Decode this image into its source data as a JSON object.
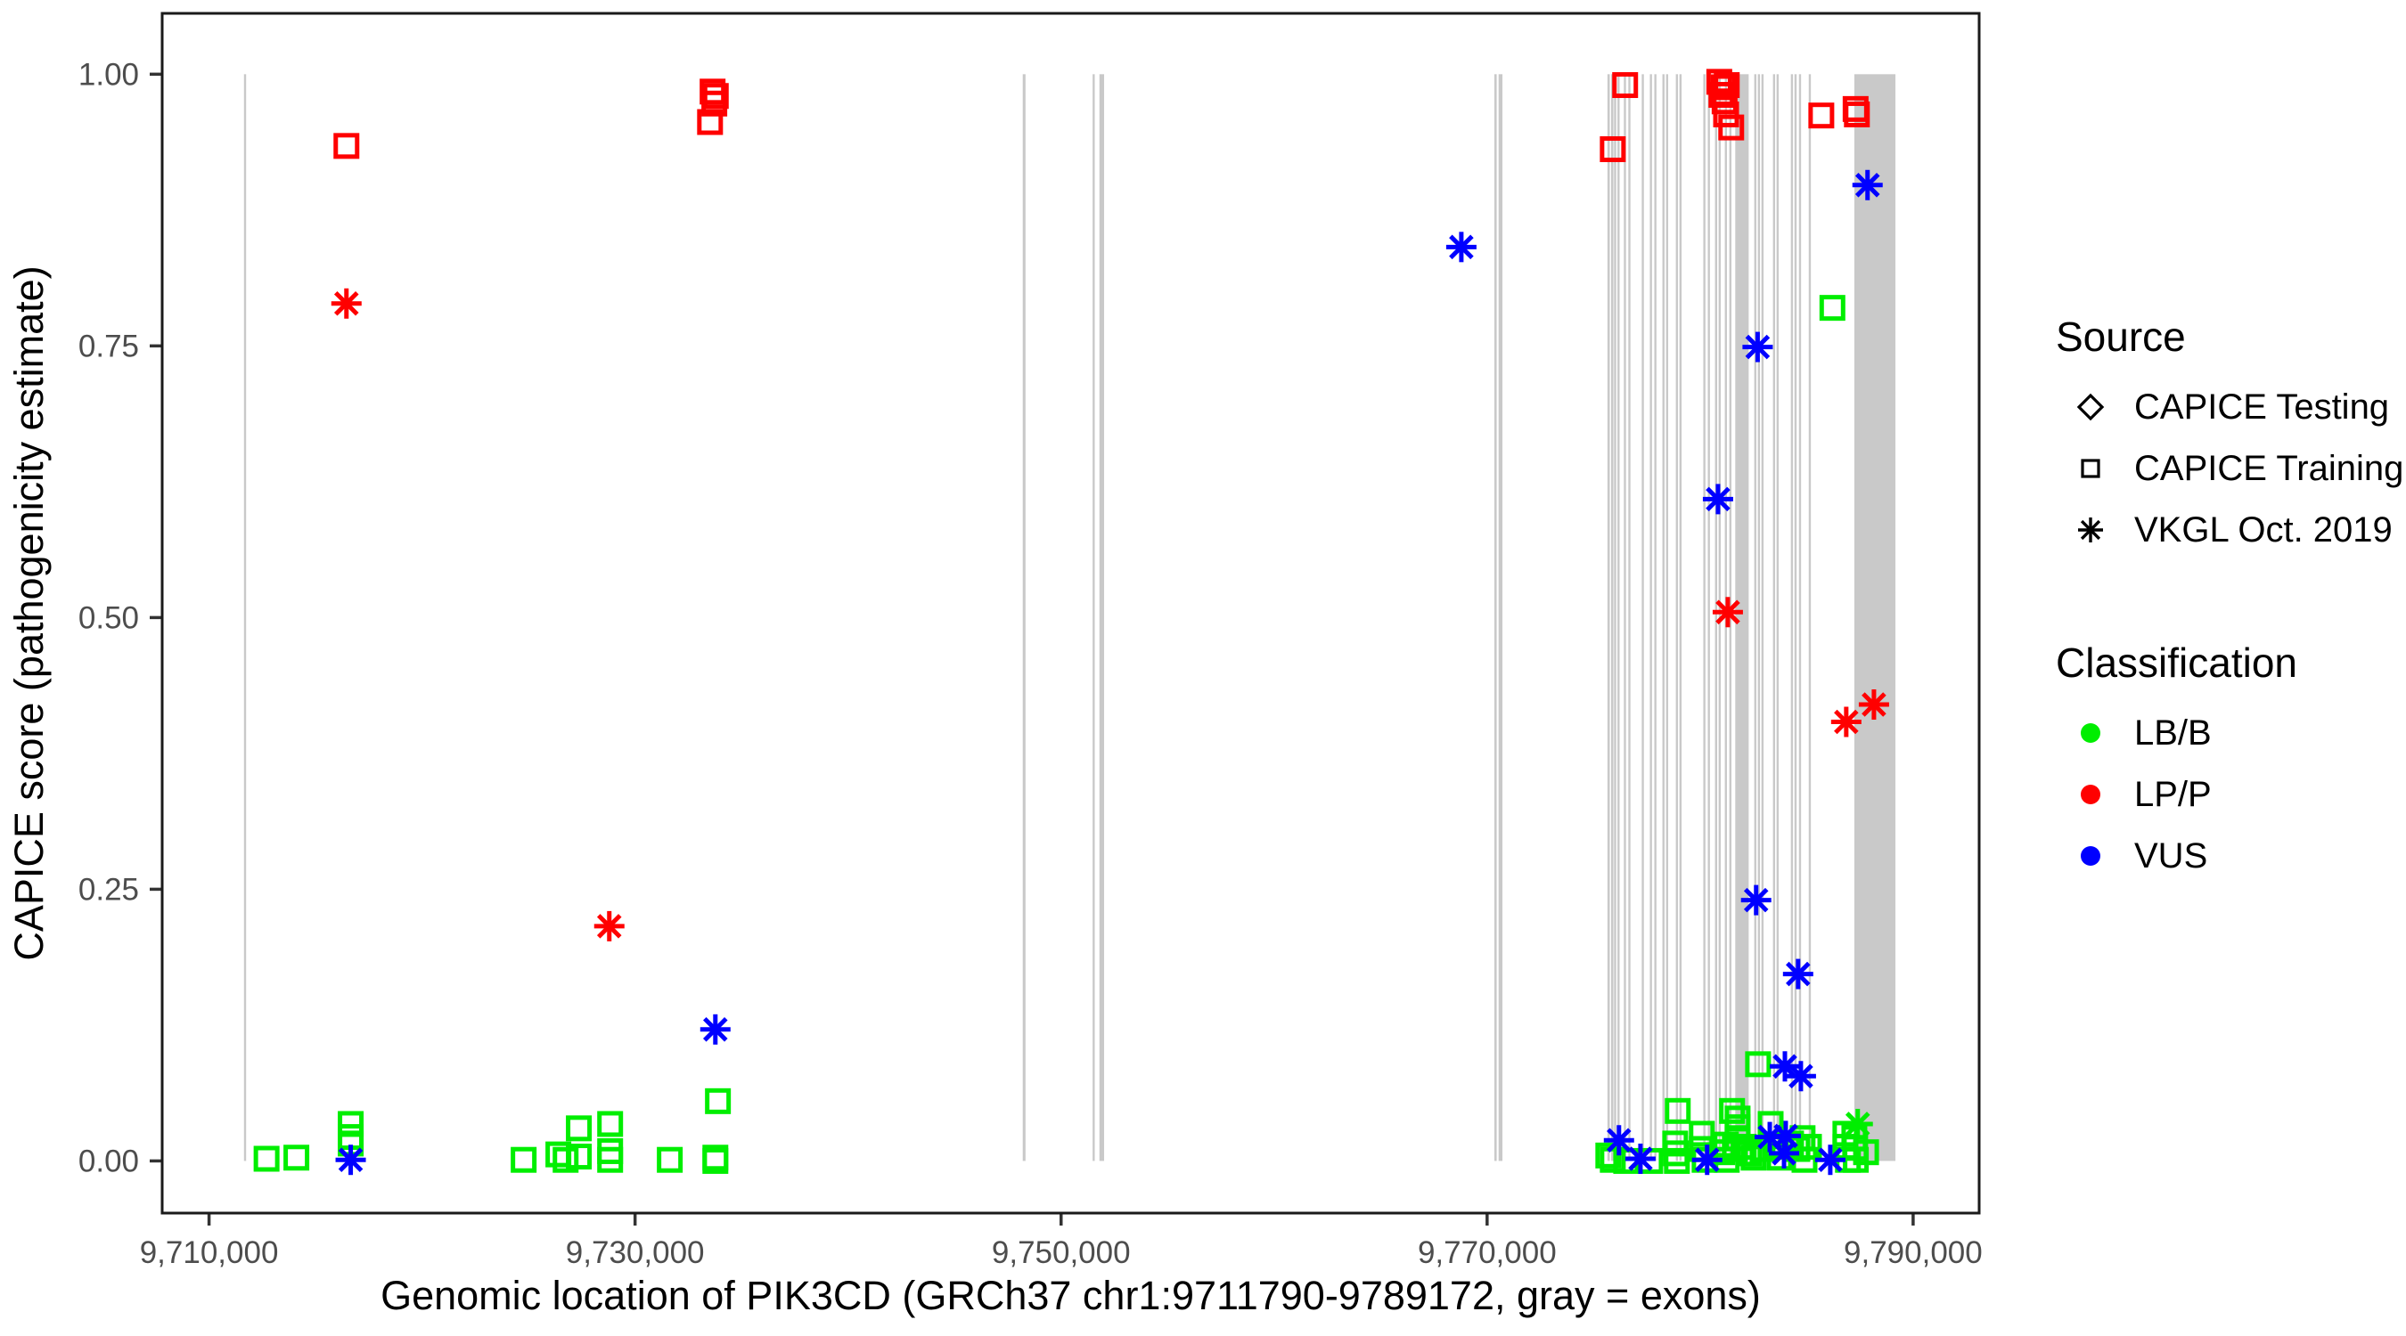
{
  "legend": {
    "source": {
      "title": "Source",
      "items": [
        {
          "label": "CAPICE Testing",
          "symbol": "diamond"
        },
        {
          "label": "CAPICE Training",
          "symbol": "square"
        },
        {
          "label": "VKGL Oct. 2019",
          "symbol": "asterisk"
        }
      ]
    },
    "classification": {
      "title": "Classification",
      "items": [
        {
          "label": "LB/B",
          "color": "#00EE00"
        },
        {
          "label": "LP/P",
          "color": "#FF0000"
        },
        {
          "label": "VUS",
          "color": "#0000FF"
        }
      ]
    }
  },
  "chart_data": {
    "type": "scatter",
    "title": "",
    "xlabel": "Genomic location of PIK3CD (GRCh37 chr1:9711790-9789172, gray = exons)",
    "ylabel": "CAPICE score (pathogenicity estimate)",
    "x_domain": [
      9707800,
      9793100
    ],
    "y_domain": [
      -0.048,
      1.056
    ],
    "x_ticks": [
      9710000,
      9730000,
      9750000,
      9770000,
      9790000
    ],
    "x_tick_labels": [
      "9,710,000",
      "9,730,000",
      "9,750,000",
      "9,770,000",
      "9,790,000"
    ],
    "y_ticks": [
      0.0,
      0.25,
      0.5,
      0.75,
      1.0
    ],
    "y_tick_labels": [
      "0.00",
      "0.25",
      "0.50",
      "0.75",
      "1.00"
    ],
    "grid": false,
    "legend_position": "right",
    "exon_color": "#C9C9C9",
    "axis_text_color": "#4D4D4D",
    "class_colors": {
      "LB/B": "#00EE00",
      "LP/P": "#FF0000",
      "VUS": "#0000FF"
    },
    "source_symbols": {
      "CAPICE Testing": "diamond",
      "CAPICE Training": "square",
      "VKGL Oct. 2019": "asterisk"
    },
    "exons": [
      [
        9711640,
        9711720
      ],
      [
        9748200,
        9748330
      ],
      [
        9751480,
        9751570
      ],
      [
        9751800,
        9752020
      ],
      [
        9770340,
        9770450
      ],
      [
        9770540,
        9770720
      ],
      [
        9775650,
        9775760
      ],
      [
        9775820,
        9775930
      ],
      [
        9775960,
        9776060
      ],
      [
        9776120,
        9776220
      ],
      [
        9776420,
        9776520
      ],
      [
        9776630,
        9776730
      ],
      [
        9777260,
        9777360
      ],
      [
        9777640,
        9777740
      ],
      [
        9777850,
        9777950
      ],
      [
        9778230,
        9778330
      ],
      [
        9778400,
        9778500
      ],
      [
        9778860,
        9778960
      ],
      [
        9779030,
        9779130
      ],
      [
        9780150,
        9780250
      ],
      [
        9780360,
        9780460
      ],
      [
        9780700,
        9780800
      ],
      [
        9780870,
        9780970
      ],
      [
        9781160,
        9781260
      ],
      [
        9781370,
        9781470
      ],
      [
        9781650,
        9782280
      ],
      [
        9782540,
        9782640
      ],
      [
        9782710,
        9782800
      ],
      [
        9782880,
        9782970
      ],
      [
        9783420,
        9783510
      ],
      [
        9783590,
        9783680
      ],
      [
        9784260,
        9784350
      ],
      [
        9784430,
        9784520
      ],
      [
        9784640,
        9784730
      ],
      [
        9785100,
        9785190
      ],
      [
        9787240,
        9789170
      ]
    ],
    "points": [
      {
        "pos": 9716450,
        "score": 0.934,
        "classification": "LP/P",
        "source": "CAPICE Training"
      },
      {
        "pos": 9733640,
        "score": 0.984,
        "classification": "LP/P",
        "source": "CAPICE Training"
      },
      {
        "pos": 9733790,
        "score": 0.98,
        "classification": "LP/P",
        "source": "CAPICE Training"
      },
      {
        "pos": 9733720,
        "score": 0.973,
        "classification": "LP/P",
        "source": "CAPICE Training"
      },
      {
        "pos": 9733520,
        "score": 0.956,
        "classification": "LP/P",
        "source": "CAPICE Training"
      },
      {
        "pos": 9775900,
        "score": 0.931,
        "classification": "LP/P",
        "source": "CAPICE Training"
      },
      {
        "pos": 9776480,
        "score": 0.99,
        "classification": "LP/P",
        "source": "CAPICE Training"
      },
      {
        "pos": 9780900,
        "score": 0.993,
        "classification": "LP/P",
        "source": "CAPICE Training"
      },
      {
        "pos": 9781100,
        "score": 0.988,
        "classification": "LP/P",
        "source": "CAPICE Training"
      },
      {
        "pos": 9781000,
        "score": 0.981,
        "classification": "LP/P",
        "source": "CAPICE Training"
      },
      {
        "pos": 9781250,
        "score": 0.99,
        "classification": "LP/P",
        "source": "CAPICE Training"
      },
      {
        "pos": 9781150,
        "score": 0.975,
        "classification": "LP/P",
        "source": "CAPICE Training"
      },
      {
        "pos": 9781220,
        "score": 0.963,
        "classification": "LP/P",
        "source": "CAPICE Training"
      },
      {
        "pos": 9781460,
        "score": 0.951,
        "classification": "LP/P",
        "source": "CAPICE Training"
      },
      {
        "pos": 9785690,
        "score": 0.962,
        "classification": "LP/P",
        "source": "CAPICE Training"
      },
      {
        "pos": 9787300,
        "score": 0.968,
        "classification": "LP/P",
        "source": "CAPICE Training"
      },
      {
        "pos": 9787360,
        "score": 0.963,
        "classification": "LP/P",
        "source": "CAPICE Training"
      },
      {
        "pos": 9716450,
        "score": 0.789,
        "classification": "LP/P",
        "source": "VKGL Oct. 2019"
      },
      {
        "pos": 9728790,
        "score": 0.216,
        "classification": "LP/P",
        "source": "VKGL Oct. 2019"
      },
      {
        "pos": 9781300,
        "score": 0.505,
        "classification": "LP/P",
        "source": "VKGL Oct. 2019"
      },
      {
        "pos": 9786860,
        "score": 0.404,
        "classification": "LP/P",
        "source": "VKGL Oct. 2019"
      },
      {
        "pos": 9788160,
        "score": 0.42,
        "classification": "LP/P",
        "source": "VKGL Oct. 2019"
      },
      {
        "pos": 9716650,
        "score": 0.001,
        "classification": "VUS",
        "source": "VKGL Oct. 2019"
      },
      {
        "pos": 9733770,
        "score": 0.121,
        "classification": "VUS",
        "source": "VKGL Oct. 2019"
      },
      {
        "pos": 9768790,
        "score": 0.841,
        "classification": "VUS",
        "source": "VKGL Oct. 2019"
      },
      {
        "pos": 9787860,
        "score": 0.898,
        "classification": "VUS",
        "source": "VKGL Oct. 2019"
      },
      {
        "pos": 9782700,
        "score": 0.749,
        "classification": "VUS",
        "source": "VKGL Oct. 2019"
      },
      {
        "pos": 9780840,
        "score": 0.609,
        "classification": "VUS",
        "source": "VKGL Oct. 2019"
      },
      {
        "pos": 9782630,
        "score": 0.24,
        "classification": "VUS",
        "source": "VKGL Oct. 2019"
      },
      {
        "pos": 9784600,
        "score": 0.172,
        "classification": "VUS",
        "source": "VKGL Oct. 2019"
      },
      {
        "pos": 9783980,
        "score": 0.087,
        "classification": "VUS",
        "source": "VKGL Oct. 2019"
      },
      {
        "pos": 9784730,
        "score": 0.078,
        "classification": "VUS",
        "source": "VKGL Oct. 2019"
      },
      {
        "pos": 9776190,
        "score": 0.019,
        "classification": "VUS",
        "source": "VKGL Oct. 2019"
      },
      {
        "pos": 9777200,
        "score": 0.002,
        "classification": "VUS",
        "source": "VKGL Oct. 2019"
      },
      {
        "pos": 9780330,
        "score": 0.001,
        "classification": "VUS",
        "source": "VKGL Oct. 2019"
      },
      {
        "pos": 9783270,
        "score": 0.022,
        "classification": "VUS",
        "source": "VKGL Oct. 2019"
      },
      {
        "pos": 9784020,
        "score": 0.023,
        "classification": "VUS",
        "source": "VKGL Oct. 2019"
      },
      {
        "pos": 9783940,
        "score": 0.007,
        "classification": "VUS",
        "source": "VKGL Oct. 2019"
      },
      {
        "pos": 9786110,
        "score": 0.001,
        "classification": "VUS",
        "source": "VKGL Oct. 2019"
      },
      {
        "pos": 9787400,
        "score": 0.034,
        "classification": "LB/B",
        "source": "VKGL Oct. 2019"
      },
      {
        "pos": 9712700,
        "score": 0.002,
        "classification": "LB/B",
        "source": "CAPICE Training"
      },
      {
        "pos": 9714100,
        "score": 0.003,
        "classification": "LB/B",
        "source": "CAPICE Training"
      },
      {
        "pos": 9716650,
        "score": 0.034,
        "classification": "LB/B",
        "source": "CAPICE Training"
      },
      {
        "pos": 9716650,
        "score": 0.022,
        "classification": "LB/B",
        "source": "CAPICE Training"
      },
      {
        "pos": 9716650,
        "score": 0.016,
        "classification": "LB/B",
        "source": "CAPICE Training"
      },
      {
        "pos": 9724770,
        "score": 0.001,
        "classification": "LB/B",
        "source": "CAPICE Training"
      },
      {
        "pos": 9726400,
        "score": 0.006,
        "classification": "LB/B",
        "source": "CAPICE Training"
      },
      {
        "pos": 9726740,
        "score": 0.001,
        "classification": "LB/B",
        "source": "CAPICE Training"
      },
      {
        "pos": 9727360,
        "score": 0.03,
        "classification": "LB/B",
        "source": "CAPICE Training"
      },
      {
        "pos": 9727360,
        "score": 0.004,
        "classification": "LB/B",
        "source": "CAPICE Training"
      },
      {
        "pos": 9728830,
        "score": 0.034,
        "classification": "LB/B",
        "source": "CAPICE Training"
      },
      {
        "pos": 9728830,
        "score": 0.009,
        "classification": "LB/B",
        "source": "CAPICE Training"
      },
      {
        "pos": 9728830,
        "score": 0.001,
        "classification": "LB/B",
        "source": "CAPICE Training"
      },
      {
        "pos": 9731630,
        "score": 0.001,
        "classification": "LB/B",
        "source": "CAPICE Training"
      },
      {
        "pos": 9733770,
        "score": 0.003,
        "classification": "LB/B",
        "source": "CAPICE Training"
      },
      {
        "pos": 9733770,
        "score": 0.0,
        "classification": "LB/B",
        "source": "CAPICE Training"
      },
      {
        "pos": 9733890,
        "score": 0.055,
        "classification": "LB/B",
        "source": "CAPICE Training"
      },
      {
        "pos": 9775690,
        "score": 0.005,
        "classification": "LB/B",
        "source": "CAPICE Training"
      },
      {
        "pos": 9775900,
        "score": 0.001,
        "classification": "LB/B",
        "source": "CAPICE Training"
      },
      {
        "pos": 9776530,
        "score": 0.0,
        "classification": "LB/B",
        "source": "CAPICE Training"
      },
      {
        "pos": 9777660,
        "score": 0.0,
        "classification": "LB/B",
        "source": "CAPICE Training"
      },
      {
        "pos": 9778950,
        "score": 0.046,
        "classification": "LB/B",
        "source": "CAPICE Training"
      },
      {
        "pos": 9778830,
        "score": 0.016,
        "classification": "LB/B",
        "source": "CAPICE Training"
      },
      {
        "pos": 9778870,
        "score": 0.007,
        "classification": "LB/B",
        "source": "CAPICE Training"
      },
      {
        "pos": 9778910,
        "score": 0.0,
        "classification": "LB/B",
        "source": "CAPICE Training"
      },
      {
        "pos": 9780080,
        "score": 0.025,
        "classification": "LB/B",
        "source": "CAPICE Training"
      },
      {
        "pos": 9780080,
        "score": 0.011,
        "classification": "LB/B",
        "source": "CAPICE Training"
      },
      {
        "pos": 9780210,
        "score": 0.001,
        "classification": "LB/B",
        "source": "CAPICE Training"
      },
      {
        "pos": 9781500,
        "score": 0.046,
        "classification": "LB/B",
        "source": "CAPICE Training"
      },
      {
        "pos": 9781760,
        "score": 0.039,
        "classification": "LB/B",
        "source": "CAPICE Training"
      },
      {
        "pos": 9781760,
        "score": 0.031,
        "classification": "LB/B",
        "source": "CAPICE Training"
      },
      {
        "pos": 9781760,
        "score": 0.021,
        "classification": "LB/B",
        "source": "CAPICE Training"
      },
      {
        "pos": 9781210,
        "score": 0.015,
        "classification": "LB/B",
        "source": "CAPICE Training"
      },
      {
        "pos": 9781040,
        "score": 0.008,
        "classification": "LB/B",
        "source": "CAPICE Training"
      },
      {
        "pos": 9781250,
        "score": 0.001,
        "classification": "LB/B",
        "source": "CAPICE Training"
      },
      {
        "pos": 9781630,
        "score": 0.011,
        "classification": "LB/B",
        "source": "CAPICE Training"
      },
      {
        "pos": 9782050,
        "score": 0.013,
        "classification": "LB/B",
        "source": "CAPICE Training"
      },
      {
        "pos": 9782300,
        "score": 0.007,
        "classification": "LB/B",
        "source": "CAPICE Training"
      },
      {
        "pos": 9782510,
        "score": 0.003,
        "classification": "LB/B",
        "source": "CAPICE Training"
      },
      {
        "pos": 9782930,
        "score": 0.011,
        "classification": "LB/B",
        "source": "CAPICE Training"
      },
      {
        "pos": 9783310,
        "score": 0.034,
        "classification": "LB/B",
        "source": "CAPICE Training"
      },
      {
        "pos": 9783560,
        "score": 0.013,
        "classification": "LB/B",
        "source": "CAPICE Training"
      },
      {
        "pos": 9783730,
        "score": 0.003,
        "classification": "LB/B",
        "source": "CAPICE Training"
      },
      {
        "pos": 9784270,
        "score": 0.016,
        "classification": "LB/B",
        "source": "CAPICE Training"
      },
      {
        "pos": 9784560,
        "score": 0.011,
        "classification": "LB/B",
        "source": "CAPICE Training"
      },
      {
        "pos": 9784810,
        "score": 0.021,
        "classification": "LB/B",
        "source": "CAPICE Training"
      },
      {
        "pos": 9784900,
        "score": 0.001,
        "classification": "LB/B",
        "source": "CAPICE Training"
      },
      {
        "pos": 9785110,
        "score": 0.013,
        "classification": "LB/B",
        "source": "CAPICE Training"
      },
      {
        "pos": 9786820,
        "score": 0.025,
        "classification": "LB/B",
        "source": "CAPICE Training"
      },
      {
        "pos": 9786820,
        "score": 0.013,
        "classification": "LB/B",
        "source": "CAPICE Training"
      },
      {
        "pos": 9786940,
        "score": 0.001,
        "classification": "LB/B",
        "source": "CAPICE Training"
      },
      {
        "pos": 9787240,
        "score": 0.021,
        "classification": "LB/B",
        "source": "CAPICE Training"
      },
      {
        "pos": 9787280,
        "score": 0.012,
        "classification": "LB/B",
        "source": "CAPICE Training"
      },
      {
        "pos": 9787790,
        "score": 0.008,
        "classification": "LB/B",
        "source": "CAPICE Training"
      },
      {
        "pos": 9787310,
        "score": 0.001,
        "classification": "LB/B",
        "source": "CAPICE Training"
      },
      {
        "pos": 9782720,
        "score": 0.089,
        "classification": "LB/B",
        "source": "CAPICE Training"
      },
      {
        "pos": 9786210,
        "score": 0.785,
        "classification": "LB/B",
        "source": "CAPICE Training"
      }
    ]
  }
}
